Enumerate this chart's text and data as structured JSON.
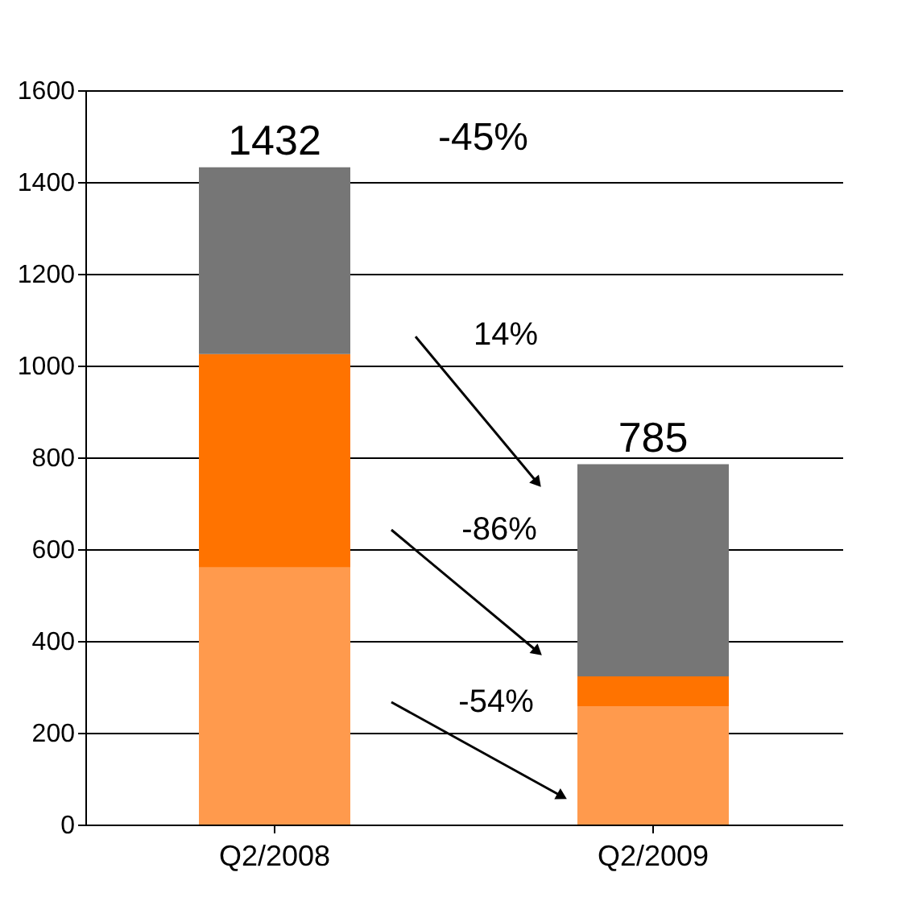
{
  "chart_data": {
    "type": "bar",
    "stacked": true,
    "categories": [
      "Q2/2008",
      "Q2/2009"
    ],
    "series": [
      {
        "color": "#ff9a4d",
        "values": [
          560,
          258
        ]
      },
      {
        "color": "#ff7300",
        "values": [
          465,
          65
        ]
      },
      {
        "color": "#767676",
        "values": [
          407,
          462
        ]
      }
    ],
    "totals": [
      "1432",
      "785"
    ],
    "ylim": [
      0,
      1600
    ],
    "yticks": [
      0,
      200,
      400,
      600,
      800,
      1000,
      1200,
      1400,
      1600
    ],
    "grid": "y",
    "legend": false,
    "annotations": [
      "-45%",
      "14%",
      "-86%",
      "-54%"
    ]
  }
}
